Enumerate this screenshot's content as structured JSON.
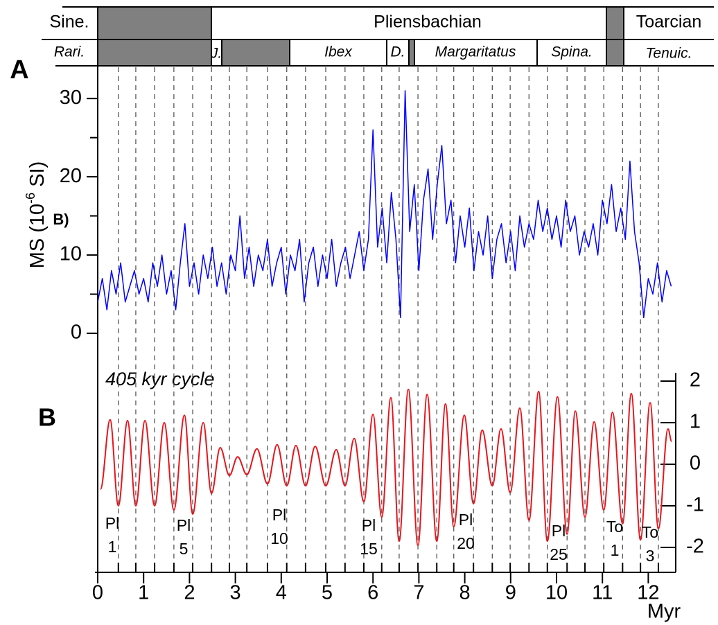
{
  "stratigraphy": {
    "stages": [
      "Sine.",
      "Pliensbachian",
      "Toarcian"
    ],
    "zones": [
      "Rari.",
      "J.",
      "Ibex",
      "D.",
      "Margaritatus",
      "Spina.",
      "Tenuic."
    ]
  },
  "chart_data": [
    {
      "type": "line",
      "label": "A",
      "stray_label": "B)",
      "ylabel": [
        "MS (10",
        "-6",
        " SI)"
      ],
      "xlim": [
        0,
        12.5
      ],
      "ylim": [
        0,
        34
      ],
      "yticks": [
        0,
        10,
        20,
        30
      ],
      "yminorticks": [
        5,
        15,
        25
      ],
      "x": [
        0.0,
        0.1,
        0.2,
        0.3,
        0.4,
        0.5,
        0.6,
        0.7,
        0.8,
        0.9,
        1.0,
        1.1,
        1.2,
        1.3,
        1.4,
        1.5,
        1.6,
        1.7,
        1.8,
        1.9,
        2.0,
        2.1,
        2.2,
        2.3,
        2.4,
        2.5,
        2.6,
        2.7,
        2.8,
        2.9,
        3.0,
        3.1,
        3.2,
        3.3,
        3.4,
        3.5,
        3.6,
        3.7,
        3.8,
        3.9,
        4.0,
        4.1,
        4.2,
        4.3,
        4.4,
        4.5,
        4.6,
        4.7,
        4.8,
        4.9,
        5.0,
        5.1,
        5.2,
        5.3,
        5.4,
        5.5,
        5.6,
        5.7,
        5.8,
        5.9,
        6.0,
        6.1,
        6.2,
        6.3,
        6.4,
        6.5,
        6.6,
        6.7,
        6.8,
        6.9,
        7.0,
        7.1,
        7.2,
        7.3,
        7.4,
        7.5,
        7.6,
        7.7,
        7.8,
        7.9,
        8.0,
        8.1,
        8.2,
        8.3,
        8.4,
        8.5,
        8.6,
        8.7,
        8.8,
        8.9,
        9.0,
        9.1,
        9.2,
        9.3,
        9.4,
        9.5,
        9.6,
        9.7,
        9.8,
        9.9,
        10.0,
        10.1,
        10.2,
        10.3,
        10.4,
        10.5,
        10.6,
        10.7,
        10.8,
        10.9,
        11.0,
        11.1,
        11.2,
        11.3,
        11.4,
        11.5,
        11.6,
        11.7,
        11.8,
        11.9,
        12.0,
        12.1,
        12.2,
        12.3,
        12.4,
        12.5
      ],
      "series": [
        {
          "name": "MS",
          "color": "#0000ff",
          "values": [
            4,
            7,
            3,
            8,
            5,
            9,
            4,
            6,
            8,
            5,
            7,
            4,
            9,
            6,
            10,
            5,
            8,
            3,
            9,
            14,
            6,
            9,
            5,
            10,
            7,
            11,
            6,
            9,
            5,
            10,
            8,
            15,
            7,
            11,
            6,
            10,
            8,
            12,
            6,
            9,
            11,
            5,
            10,
            8,
            12,
            4,
            9,
            11,
            6,
            10,
            7,
            12,
            6,
            9,
            11,
            7,
            10,
            13,
            8,
            12,
            26,
            11,
            16,
            9,
            18,
            12,
            2,
            31,
            13,
            19,
            8,
            17,
            21,
            12,
            19,
            24,
            14,
            17,
            9,
            15,
            11,
            16,
            8,
            13,
            10,
            15,
            7,
            12,
            14,
            9,
            13,
            8,
            15,
            11,
            14,
            12,
            17,
            13,
            16,
            12,
            15,
            11,
            17,
            13,
            15,
            10,
            13,
            11,
            14,
            10,
            17,
            14,
            19,
            13,
            16,
            12,
            22,
            13,
            9,
            2,
            7,
            5,
            9,
            4,
            8,
            6
          ]
        }
      ]
    },
    {
      "type": "line",
      "label": "B",
      "subtitle": "405 kyr cycle",
      "xlabel": "Myr",
      "xlim": [
        0,
        12.5
      ],
      "xticks": [
        0,
        1,
        2,
        3,
        4,
        5,
        6,
        7,
        8,
        9,
        10,
        11,
        12
      ],
      "y2lim": [
        -2.6,
        2.2
      ],
      "y2ticks": [
        2,
        1,
        0,
        -1,
        -2
      ],
      "x": [
        0.06,
        0.27,
        0.45,
        0.65,
        0.83,
        1.03,
        1.24,
        1.45,
        1.66,
        1.89,
        2.07,
        2.3,
        2.48,
        2.67,
        2.87,
        3.05,
        3.25,
        3.47,
        3.7,
        3.91,
        4.12,
        4.32,
        4.53,
        4.74,
        4.97,
        5.2,
        5.39,
        5.59,
        5.8,
        6.0,
        6.19,
        6.39,
        6.57,
        6.77,
        6.98,
        7.18,
        7.39,
        7.58,
        7.76,
        7.99,
        8.19,
        8.38,
        8.6,
        8.79,
        8.99,
        9.2,
        9.4,
        9.61,
        9.8,
        10.02,
        10.23,
        10.41,
        10.62,
        10.82,
        11.03,
        11.22,
        11.44,
        11.63,
        11.83,
        12.04,
        12.22,
        12.43,
        12.51
      ],
      "series": [
        {
          "name": "405 kyr",
          "color": "#e8141c",
          "axis": "y2",
          "values": [
            -0.6,
            1.07,
            -1.0,
            1.05,
            -1.0,
            1.05,
            -1.0,
            1.0,
            -1.1,
            1.18,
            -1.2,
            1.0,
            -0.7,
            0.4,
            -0.27,
            0.18,
            -0.25,
            0.37,
            -0.47,
            0.47,
            -0.52,
            0.45,
            -0.52,
            0.43,
            -0.52,
            0.35,
            -0.52,
            0.62,
            -0.9,
            1.2,
            -1.27,
            1.6,
            -1.85,
            1.8,
            -1.95,
            1.68,
            -1.85,
            1.45,
            -1.5,
            1.18,
            -0.95,
            0.82,
            -0.52,
            0.85,
            -0.68,
            1.35,
            -1.35,
            1.75,
            -1.85,
            1.62,
            -1.68,
            1.28,
            -1.27,
            1.02,
            -1.1,
            1.25,
            -1.43,
            1.7,
            -1.82,
            1.48,
            -1.55,
            0.85,
            0.55
          ]
        }
      ],
      "annotations": [
        {
          "lines": [
            "Pl",
            "1"
          ]
        },
        {
          "lines": [
            "Pl",
            "5"
          ]
        },
        {
          "lines": [
            "Pl",
            "10"
          ]
        },
        {
          "lines": [
            "Pl",
            "15"
          ]
        },
        {
          "lines": [
            "Pl",
            "20"
          ]
        },
        {
          "lines": [
            "Pl",
            "25"
          ]
        },
        {
          "lines": [
            "To",
            "1"
          ]
        },
        {
          "lines": [
            "To",
            "3"
          ]
        }
      ]
    }
  ]
}
